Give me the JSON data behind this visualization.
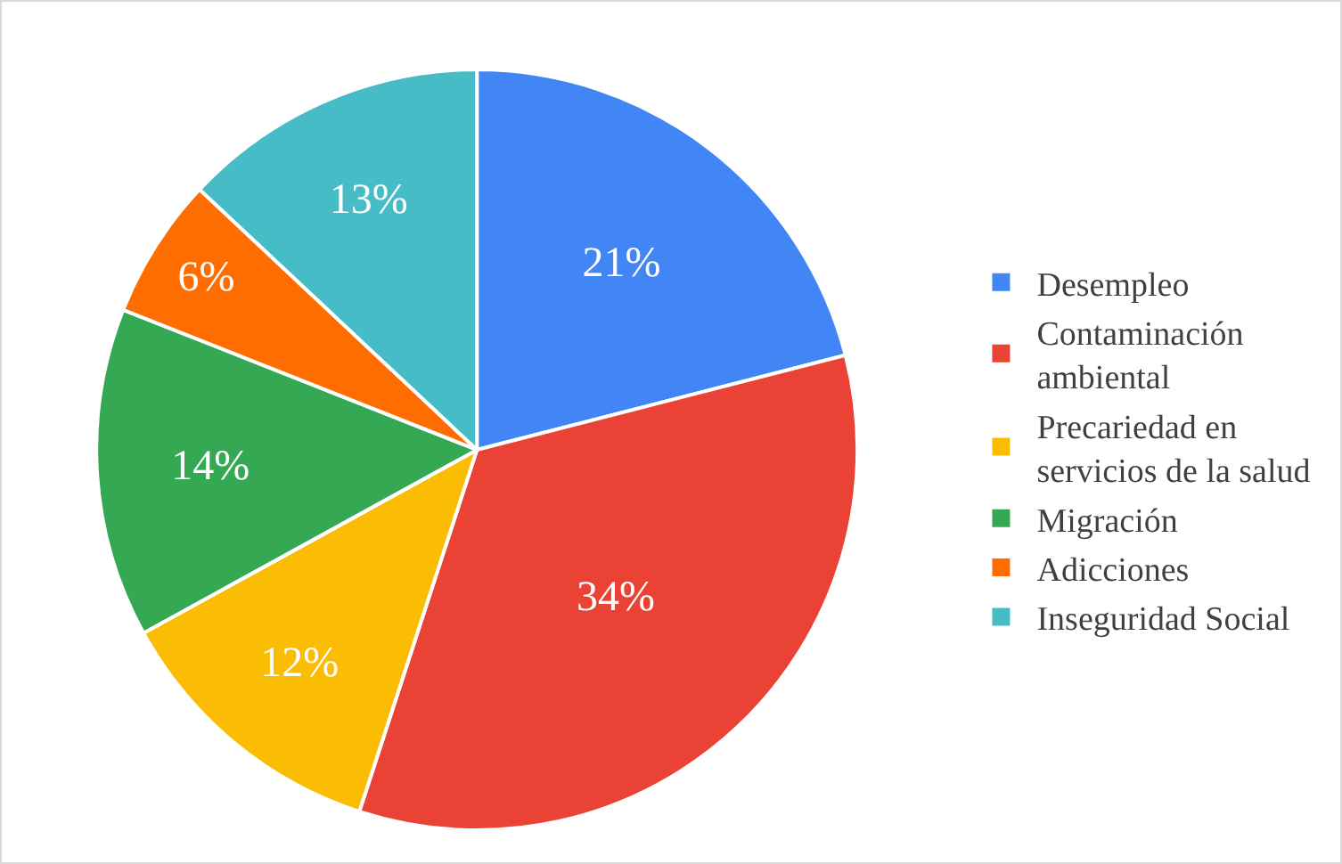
{
  "chart_data": {
    "type": "pie",
    "categories": [
      "Desempleo",
      "Contaminación ambiental",
      "Precariedad en servicios de la salud",
      "Migración",
      "Adicciones",
      "Inseguridad Social"
    ],
    "values": [
      21,
      34,
      12,
      14,
      6,
      13
    ],
    "value_labels": [
      "21%",
      "34%",
      "12%",
      "14%",
      "6%",
      "13%"
    ],
    "colors": [
      "#4285f4",
      "#ea4335",
      "#fbbc04",
      "#34a853",
      "#ff6d01",
      "#46bdc6"
    ],
    "legend": "right"
  }
}
